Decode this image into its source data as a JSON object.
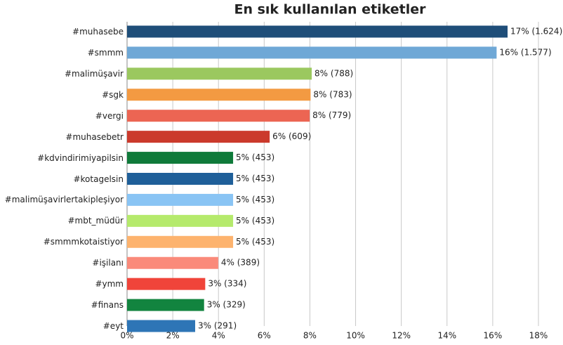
{
  "chart_data": {
    "type": "bar",
    "orientation": "horizontal",
    "title": "En sık kullanılan etiketler",
    "categories": [
      "#muhasebe",
      "#smmm",
      "#malimüşavir",
      "#sgk",
      "#vergi",
      "#muhasebetr",
      "#kdvindirimiyapilsin",
      "#kotagelsin",
      "#malimüşavirlertakipleşiyor",
      "#mbt_müdür",
      "#smmmkotaistiyor",
      "#işilanı",
      "#ymm",
      "#finans",
      "#eyt"
    ],
    "values": [
      16.65,
      16.17,
      8.08,
      8.03,
      7.99,
      6.24,
      4.64,
      4.64,
      4.64,
      4.64,
      4.64,
      3.99,
      3.42,
      3.37,
      2.98
    ],
    "value_labels": [
      "17% (1.624)",
      "16% (1.577)",
      "8% (788)",
      "8% (783)",
      "8% (779)",
      "6% (609)",
      "5% (453)",
      "5% (453)",
      "5% (453)",
      "5% (453)",
      "5% (453)",
      "4% (389)",
      "3% (334)",
      "3% (329)",
      "3% (291)"
    ],
    "colors": [
      "#1f4e79",
      "#6fa8d6",
      "#9bc85f",
      "#f39a42",
      "#ec6553",
      "#cb3a2c",
      "#0f7a3a",
      "#1f5f99",
      "#89c4f4",
      "#b5ea6c",
      "#fdb36e",
      "#fa8a7a",
      "#f0443a",
      "#12843f",
      "#2e75b6"
    ],
    "xlim": [
      0,
      18
    ],
    "xticks": [
      {
        "value": 0,
        "label": "0%"
      },
      {
        "value": 2,
        "label": "2%"
      },
      {
        "value": 4,
        "label": "4%"
      },
      {
        "value": 6,
        "label": "6%"
      },
      {
        "value": 8,
        "label": "8%"
      },
      {
        "value": 10,
        "label": "10%"
      },
      {
        "value": 12,
        "label": "12%"
      },
      {
        "value": 14,
        "label": "14%"
      },
      {
        "value": 16,
        "label": "16%"
      },
      {
        "value": 18,
        "label": "18%"
      }
    ],
    "grid": true
  }
}
